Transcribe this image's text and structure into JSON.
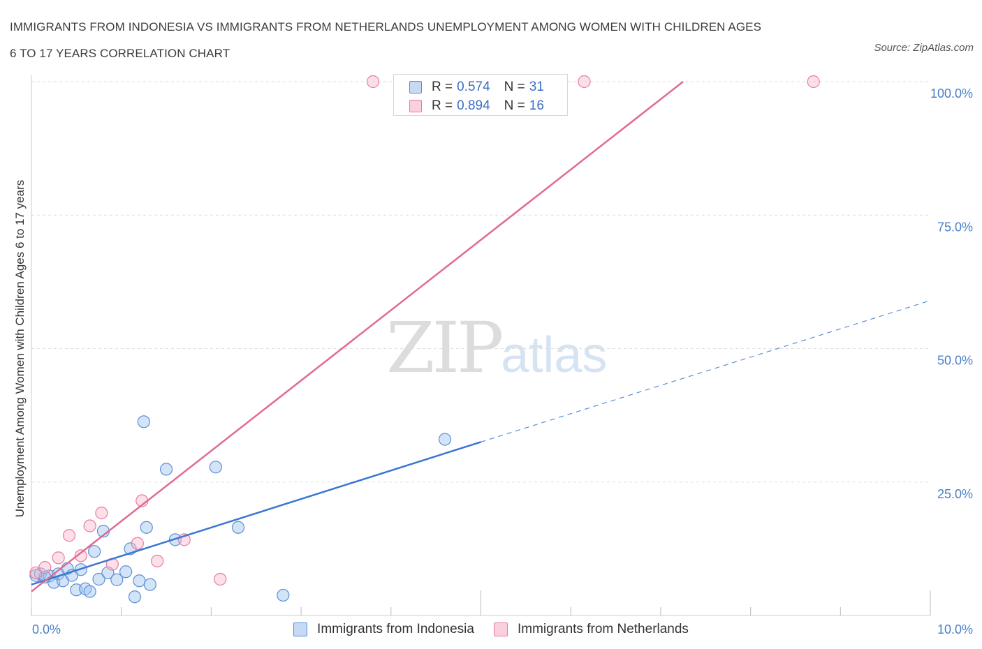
{
  "title_line1": "IMMIGRANTS FROM INDONESIA VS IMMIGRANTS FROM NETHERLANDS UNEMPLOYMENT AMONG WOMEN WITH CHILDREN AGES",
  "title_line2": "6 TO 17 YEARS CORRELATION CHART",
  "source": "Source: ZipAtlas.com",
  "watermark_zip": "ZIP",
  "watermark_atlas": "atlas",
  "legend_top": [
    {
      "r_label": "R =",
      "r_value": "0.574",
      "n_label": "N =",
      "n_value": "31"
    },
    {
      "r_label": "R =",
      "r_value": "0.894",
      "n_label": "N =",
      "n_value": "16"
    }
  ],
  "chart_data": {
    "type": "scatter",
    "title": "IMMIGRANTS FROM INDONESIA VS IMMIGRANTS FROM NETHERLANDS UNEMPLOYMENT AMONG WOMEN WITH CHILDREN AGES 6 TO 17 YEARS CORRELATION CHART",
    "xlabel": "",
    "ylabel": "Unemployment Among Women with Children Ages 6 to 17 years",
    "xlim": [
      0,
      10
    ],
    "ylim": [
      0,
      100
    ],
    "x_tick_labels": [
      "0.0%",
      "10.0%"
    ],
    "y_ticks": [
      25,
      50,
      75,
      100
    ],
    "y_tick_labels": [
      "25.0%",
      "50.0%",
      "75.0%",
      "100.0%"
    ],
    "grid": true,
    "legend_position": "top-center",
    "colors": {
      "indonesia": "#5b8fd6",
      "netherlands": "#e87ca0"
    },
    "series": [
      {
        "name": "Immigrants from Indonesia",
        "color": "#5b8fd6",
        "points": [
          [
            0.05,
            7.5
          ],
          [
            0.1,
            7.8
          ],
          [
            0.2,
            7.4
          ],
          [
            0.25,
            6.2
          ],
          [
            0.3,
            7.8
          ],
          [
            0.35,
            6.5
          ],
          [
            0.4,
            8.8
          ],
          [
            0.45,
            7.5
          ],
          [
            0.5,
            4.8
          ],
          [
            0.55,
            8.6
          ],
          [
            0.6,
            5.0
          ],
          [
            0.65,
            4.5
          ],
          [
            0.7,
            12.0
          ],
          [
            0.75,
            6.8
          ],
          [
            0.8,
            15.8
          ],
          [
            0.85,
            8.0
          ],
          [
            0.95,
            6.7
          ],
          [
            1.05,
            8.2
          ],
          [
            1.1,
            12.5
          ],
          [
            1.15,
            3.5
          ],
          [
            1.2,
            6.5
          ],
          [
            1.25,
            36.3
          ],
          [
            1.28,
            16.5
          ],
          [
            1.32,
            5.8
          ],
          [
            1.5,
            27.4
          ],
          [
            1.6,
            14.2
          ],
          [
            2.05,
            27.8
          ],
          [
            2.3,
            16.5
          ],
          [
            2.8,
            3.8
          ],
          [
            4.6,
            33.0
          ],
          [
            0.15,
            7.2
          ]
        ],
        "trend": {
          "x": [
            0,
            5.0
          ],
          "y": [
            5.8,
            32.5
          ]
        },
        "trend_dashed": {
          "x": [
            5.0,
            10.0
          ],
          "y": [
            32.5,
            59.0
          ]
        }
      },
      {
        "name": "Immigrants from Netherlands",
        "color": "#e87ca0",
        "points": [
          [
            0.05,
            8.0
          ],
          [
            0.15,
            9.0
          ],
          [
            0.3,
            10.8
          ],
          [
            0.42,
            15.0
          ],
          [
            0.55,
            11.2
          ],
          [
            0.65,
            16.8
          ],
          [
            0.78,
            19.2
          ],
          [
            0.9,
            9.6
          ],
          [
            1.18,
            13.5
          ],
          [
            1.23,
            21.5
          ],
          [
            1.4,
            10.2
          ],
          [
            1.7,
            14.2
          ],
          [
            2.1,
            6.8
          ],
          [
            3.8,
            100
          ],
          [
            6.15,
            100
          ],
          [
            8.7,
            100
          ]
        ],
        "trend": {
          "x": [
            0,
            7.25
          ],
          "y": [
            4.5,
            100
          ]
        }
      }
    ]
  }
}
